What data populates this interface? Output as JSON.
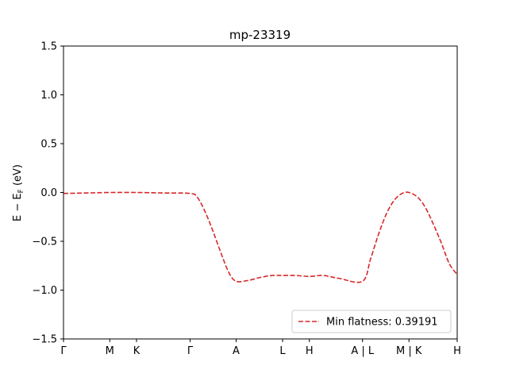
{
  "chart_data": {
    "type": "line",
    "title": "mp-23319",
    "xlabel": "",
    "ylabel": "E − E_F (eV)",
    "ylim": [
      -1.5,
      1.5
    ],
    "yticks": [
      1.5,
      1.0,
      0.5,
      0.0,
      -0.5,
      -1.0,
      -1.5
    ],
    "ytick_labels": [
      "1.5",
      "1.0",
      "0.5",
      "0.0",
      "−0.5",
      "−1.0",
      "−1.5"
    ],
    "xlim": [
      0,
      1.0
    ],
    "xticks": [
      {
        "label": "Γ",
        "x": 0.0
      },
      {
        "label": "M",
        "x": 0.1175
      },
      {
        "label": "K",
        "x": 0.1855
      },
      {
        "label": "Γ",
        "x": 0.3215
      },
      {
        "label": "A",
        "x": 0.4385
      },
      {
        "label": "L",
        "x": 0.5565
      },
      {
        "label": "H",
        "x": 0.6245
      },
      {
        "label": "A | L",
        "x": 0.7595
      },
      {
        "label": "M | K",
        "x": 0.8775
      },
      {
        "label": "H",
        "x": 1.0
      }
    ],
    "grid": false,
    "legend": {
      "position": "lower right",
      "entries": [
        "Min flatness: 0.39191"
      ]
    },
    "series": [
      {
        "name": "Min flatness: 0.39191",
        "color": "#d62728",
        "style": "dashed",
        "x": [
          0.0,
          0.06,
          0.1175,
          0.1855,
          0.25,
          0.3215,
          0.34,
          0.36,
          0.38,
          0.4,
          0.42,
          0.4385,
          0.47,
          0.5,
          0.53,
          0.5565,
          0.59,
          0.6245,
          0.66,
          0.7,
          0.7595,
          0.78,
          0.8,
          0.82,
          0.84,
          0.86,
          0.8775,
          0.9,
          0.92,
          0.94,
          0.96,
          0.98,
          1.0
        ],
        "y": [
          -0.01,
          -0.005,
          0.0,
          0.0,
          -0.005,
          -0.01,
          -0.05,
          -0.2,
          -0.4,
          -0.62,
          -0.82,
          -0.91,
          -0.9,
          -0.87,
          -0.85,
          -0.85,
          -0.85,
          -0.86,
          -0.85,
          -0.88,
          -0.91,
          -0.68,
          -0.43,
          -0.22,
          -0.08,
          -0.01,
          0.0,
          -0.05,
          -0.16,
          -0.33,
          -0.52,
          -0.73,
          -0.84
        ]
      }
    ]
  }
}
